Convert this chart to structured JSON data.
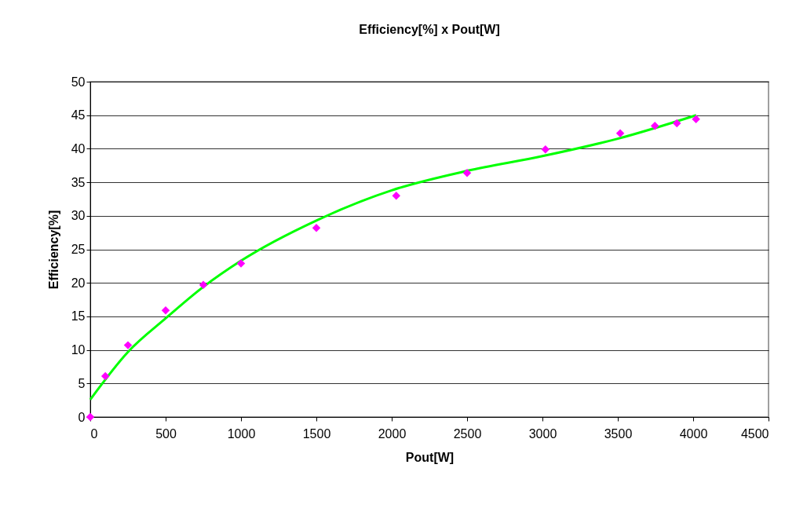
{
  "chart_data": {
    "type": "scatter",
    "title": "Efficiency[%] x Pout[W]",
    "xlabel": "Pout[W]",
    "ylabel": "Efficiency[%]",
    "xlim": [
      0,
      4500
    ],
    "xticks": [
      0,
      500,
      1000,
      1500,
      2000,
      2500,
      3000,
      3500,
      4000,
      4500
    ],
    "ylim": [
      0,
      50
    ],
    "yticks": [
      0,
      5,
      10,
      15,
      20,
      25,
      30,
      35,
      40,
      45,
      50
    ],
    "grid": "y",
    "series": [
      {
        "color": "#ff00ff",
        "marker": "diamond",
        "x": [
          0,
          100,
          250,
          500,
          750,
          1000,
          1500,
          2030,
          2500,
          3020,
          3516,
          3746,
          3892,
          4019
        ],
        "values": [
          0,
          6.1,
          10.7,
          15.9,
          19.7,
          22.9,
          28.2,
          33.0,
          36.4,
          39.9,
          42.3,
          43.4,
          43.8,
          44.4
        ]
      },
      {
        "type": "line",
        "color": "#00ff00",
        "line_style": "solid",
        "x": [
          0,
          250,
          500,
          750,
          1000,
          1500,
          2000,
          2500,
          3000,
          3500,
          4020
        ],
        "values": [
          2.6,
          9.7,
          14.7,
          19.4,
          23.3,
          29.3,
          33.8,
          36.7,
          38.9,
          41.5,
          45.0
        ]
      }
    ]
  }
}
